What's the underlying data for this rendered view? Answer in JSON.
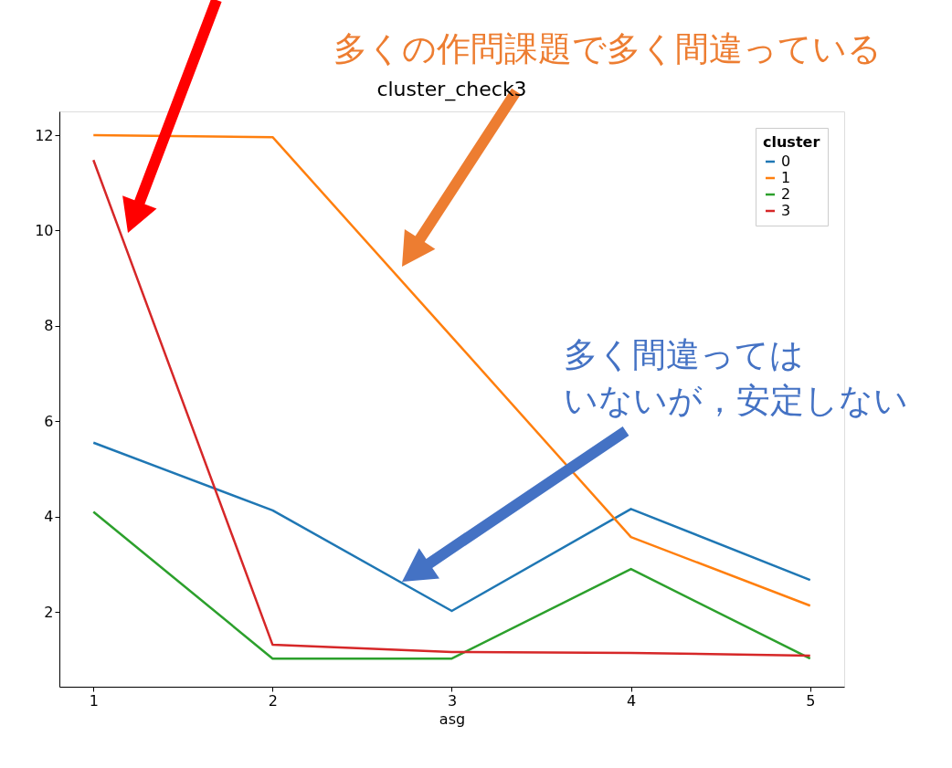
{
  "chart_data": {
    "type": "line",
    "title": "cluster_check3",
    "xlabel": "asg",
    "legend_title": "cluster",
    "x": [
      1,
      2,
      3,
      4,
      5
    ],
    "series": [
      {
        "name": "0",
        "color": "#1f77b4",
        "values": [
          5.55,
          4.13,
          2.02,
          4.16,
          2.67
        ]
      },
      {
        "name": "1",
        "color": "#ff7f0e",
        "values": [
          12.0,
          11.96,
          7.77,
          3.57,
          2.13
        ]
      },
      {
        "name": "2",
        "color": "#2ca02c",
        "values": [
          4.1,
          1.02,
          1.02,
          2.9,
          1.02
        ]
      },
      {
        "name": "3",
        "color": "#d62728",
        "values": [
          11.48,
          1.31,
          1.16,
          1.14,
          1.08
        ]
      }
    ],
    "xlim": [
      0.81,
      5.19
    ],
    "ylim": [
      0.43,
      12.5
    ],
    "xticks": [
      1,
      2,
      3,
      4,
      5
    ],
    "yticks": [
      2,
      4,
      6,
      8,
      10,
      12
    ],
    "grid": false,
    "legend": "top right",
    "marker": "none",
    "line_style": "solid",
    "annotations": [
      "多くの作問課題で多く間違っている",
      "多く間違ってはいないが，安定しない"
    ]
  }
}
